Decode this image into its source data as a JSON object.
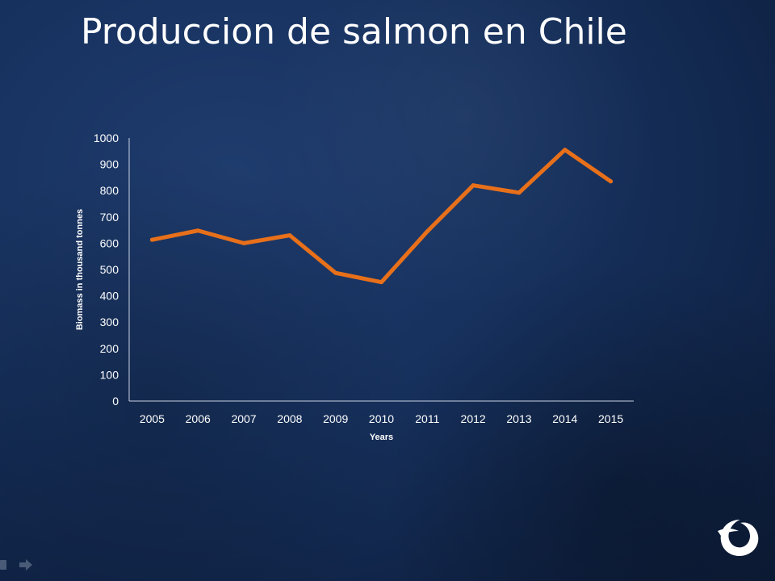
{
  "slide": {
    "title": "Produccion de salmon en Chile"
  },
  "chart_data": {
    "type": "line",
    "x": [
      "2005",
      "2006",
      "2007",
      "2008",
      "2009",
      "2010",
      "2011",
      "2012",
      "2013",
      "2014",
      "2015"
    ],
    "series": [
      {
        "values": [
          613,
          648,
          600,
          630,
          487,
          452,
          645,
          820,
          792,
          955,
          835
        ]
      }
    ],
    "xlabel": "Years",
    "ylabel": "Biomass in thousand tonnes",
    "ylim": [
      0,
      1000
    ],
    "yticks": [
      0,
      100,
      200,
      300,
      400,
      500,
      600,
      700,
      800,
      900,
      1000
    ],
    "line_color": "#e8701a",
    "grid": false,
    "legend": "none"
  },
  "decor": {
    "logo_icon": "swirl-logo-icon",
    "nav_icons": [
      "slide-control-icon",
      "arrow-right-icon"
    ]
  }
}
